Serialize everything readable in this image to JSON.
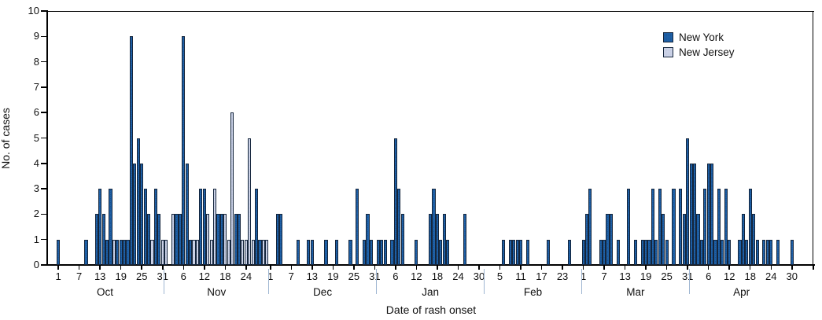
{
  "chart_data": {
    "type": "bar",
    "title": "",
    "xlabel": "Date of rash onset",
    "ylabel": "No. of cases",
    "ylim": [
      0,
      10
    ],
    "ytick_step": 1,
    "grid": false,
    "legend_position": "top-right",
    "x_axis_note": "daily bars; axis begins 3 days before Oct 1 and runs through Apr 30",
    "lead_days_before_oct1": 3,
    "months": [
      {
        "name": "Oct",
        "days": 31,
        "ticks": [
          1,
          7,
          13,
          19,
          25,
          31
        ]
      },
      {
        "name": "Nov",
        "days": 30,
        "ticks": [
          6,
          12,
          18,
          24
        ]
      },
      {
        "name": "Dec",
        "days": 31,
        "ticks": [
          1,
          7,
          13,
          19,
          25,
          31
        ]
      },
      {
        "name": "Jan",
        "days": 31,
        "ticks": [
          6,
          12,
          18,
          24,
          30
        ]
      },
      {
        "name": "Feb",
        "days": 28,
        "ticks": [
          5,
          11,
          17,
          23
        ]
      },
      {
        "name": "Mar",
        "days": 31,
        "ticks": [
          1,
          7,
          13,
          19,
          25,
          31
        ]
      },
      {
        "name": "Apr",
        "days": 30,
        "ticks": [
          6,
          12,
          18,
          24,
          30
        ]
      }
    ],
    "series": [
      {
        "name": "New York",
        "color": "#1e61a8",
        "points": [
          [
            "Oct",
            1,
            1
          ],
          [
            "Oct",
            9,
            1
          ],
          [
            "Oct",
            12,
            2
          ],
          [
            "Oct",
            13,
            3
          ],
          [
            "Oct",
            14,
            2
          ],
          [
            "Oct",
            15,
            1
          ],
          [
            "Oct",
            16,
            3
          ],
          [
            "Oct",
            18,
            1
          ],
          [
            "Oct",
            19,
            1
          ],
          [
            "Oct",
            20,
            1
          ],
          [
            "Oct",
            21,
            1
          ],
          [
            "Oct",
            22,
            9
          ],
          [
            "Oct",
            23,
            4
          ],
          [
            "Oct",
            24,
            5
          ],
          [
            "Oct",
            25,
            4
          ],
          [
            "Oct",
            26,
            3
          ],
          [
            "Oct",
            27,
            2
          ],
          [
            "Oct",
            29,
            3
          ],
          [
            "Oct",
            30,
            2
          ],
          [
            "Nov",
            4,
            2
          ],
          [
            "Nov",
            5,
            2
          ],
          [
            "Nov",
            6,
            9
          ],
          [
            "Nov",
            7,
            4
          ],
          [
            "Nov",
            8,
            1
          ],
          [
            "Nov",
            11,
            3
          ],
          [
            "Nov",
            12,
            3
          ],
          [
            "Nov",
            16,
            2
          ],
          [
            "Nov",
            17,
            2
          ],
          [
            "Nov",
            21,
            2
          ],
          [
            "Nov",
            22,
            2
          ],
          [
            "Nov",
            27,
            3
          ],
          [
            "Nov",
            28,
            1
          ],
          [
            "Dec",
            3,
            2
          ],
          [
            "Dec",
            4,
            2
          ],
          [
            "Dec",
            9,
            1
          ],
          [
            "Dec",
            12,
            1
          ],
          [
            "Dec",
            13,
            1
          ],
          [
            "Dec",
            17,
            1
          ],
          [
            "Dec",
            20,
            1
          ],
          [
            "Dec",
            24,
            1
          ],
          [
            "Dec",
            26,
            3
          ],
          [
            "Dec",
            28,
            1
          ],
          [
            "Dec",
            29,
            2
          ],
          [
            "Dec",
            30,
            1
          ],
          [
            "Jan",
            1,
            1
          ],
          [
            "Jan",
            2,
            1
          ],
          [
            "Jan",
            3,
            1
          ],
          [
            "Jan",
            5,
            1
          ],
          [
            "Jan",
            6,
            5
          ],
          [
            "Jan",
            7,
            3
          ],
          [
            "Jan",
            8,
            2
          ],
          [
            "Jan",
            12,
            1
          ],
          [
            "Jan",
            16,
            2
          ],
          [
            "Jan",
            17,
            3
          ],
          [
            "Jan",
            18,
            2
          ],
          [
            "Jan",
            19,
            1
          ],
          [
            "Jan",
            20,
            2
          ],
          [
            "Jan",
            21,
            1
          ],
          [
            "Jan",
            26,
            2
          ],
          [
            "Feb",
            6,
            1
          ],
          [
            "Feb",
            8,
            1
          ],
          [
            "Feb",
            9,
            1
          ],
          [
            "Feb",
            10,
            1
          ],
          [
            "Feb",
            11,
            1
          ],
          [
            "Feb",
            13,
            1
          ],
          [
            "Feb",
            19,
            1
          ],
          [
            "Feb",
            25,
            1
          ],
          [
            "Mar",
            1,
            1
          ],
          [
            "Mar",
            2,
            2
          ],
          [
            "Mar",
            3,
            3
          ],
          [
            "Mar",
            6,
            1
          ],
          [
            "Mar",
            7,
            1
          ],
          [
            "Mar",
            8,
            2
          ],
          [
            "Mar",
            9,
            2
          ],
          [
            "Mar",
            11,
            1
          ],
          [
            "Mar",
            14,
            3
          ],
          [
            "Mar",
            16,
            1
          ],
          [
            "Mar",
            18,
            1
          ],
          [
            "Mar",
            19,
            1
          ],
          [
            "Mar",
            20,
            1
          ],
          [
            "Mar",
            21,
            3
          ],
          [
            "Mar",
            22,
            1
          ],
          [
            "Mar",
            23,
            3
          ],
          [
            "Mar",
            24,
            2
          ],
          [
            "Mar",
            25,
            1
          ],
          [
            "Mar",
            27,
            3
          ],
          [
            "Mar",
            29,
            3
          ],
          [
            "Mar",
            30,
            2
          ],
          [
            "Mar",
            31,
            5
          ],
          [
            "Apr",
            1,
            4
          ],
          [
            "Apr",
            2,
            4
          ],
          [
            "Apr",
            3,
            2
          ],
          [
            "Apr",
            4,
            1
          ],
          [
            "Apr",
            5,
            3
          ],
          [
            "Apr",
            6,
            4
          ],
          [
            "Apr",
            7,
            4
          ],
          [
            "Apr",
            8,
            1
          ],
          [
            "Apr",
            9,
            3
          ],
          [
            "Apr",
            10,
            1
          ],
          [
            "Apr",
            11,
            3
          ],
          [
            "Apr",
            12,
            1
          ],
          [
            "Apr",
            15,
            1
          ],
          [
            "Apr",
            16,
            2
          ],
          [
            "Apr",
            17,
            1
          ],
          [
            "Apr",
            18,
            3
          ],
          [
            "Apr",
            19,
            2
          ],
          [
            "Apr",
            20,
            1
          ],
          [
            "Apr",
            22,
            1
          ],
          [
            "Apr",
            23,
            1
          ],
          [
            "Apr",
            24,
            1
          ],
          [
            "Apr",
            26,
            1
          ],
          [
            "Apr",
            30,
            1
          ]
        ]
      },
      {
        "name": "New Jersey",
        "color": "#ccd3e8",
        "points": [
          [
            "Oct",
            17,
            1
          ],
          [
            "Oct",
            28,
            1
          ],
          [
            "Oct",
            31,
            1
          ],
          [
            "Nov",
            1,
            1
          ],
          [
            "Nov",
            3,
            2
          ],
          [
            "Nov",
            9,
            1
          ],
          [
            "Nov",
            10,
            1
          ],
          [
            "Nov",
            13,
            2
          ],
          [
            "Nov",
            14,
            1
          ],
          [
            "Nov",
            15,
            3
          ],
          [
            "Nov",
            18,
            2
          ],
          [
            "Nov",
            19,
            1
          ],
          [
            "Nov",
            20,
            6
          ],
          [
            "Nov",
            23,
            1
          ],
          [
            "Nov",
            24,
            1
          ],
          [
            "Nov",
            25,
            5
          ],
          [
            "Nov",
            26,
            1
          ],
          [
            "Nov",
            29,
            1
          ],
          [
            "Nov",
            30,
            1
          ]
        ]
      }
    ]
  },
  "colors": {
    "axis": "#000000",
    "month_separator": "#9fb6d2",
    "text": "#111111",
    "new_york": "#1e61a8",
    "new_jersey": "#ccd3e8"
  }
}
